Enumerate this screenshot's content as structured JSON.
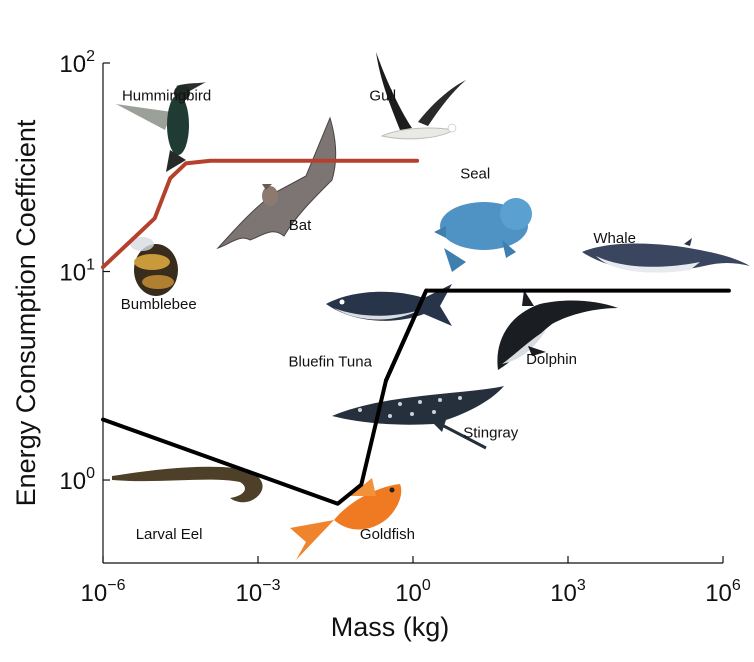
{
  "chart_data": {
    "type": "line",
    "xlabel": "Mass (kg)",
    "ylabel": "Energy Consumption Coefficient",
    "xscale": "log",
    "yscale": "log",
    "xlim": [
      1e-06,
      1000000.0
    ],
    "ylim": [
      0.4,
      100
    ],
    "grid": false,
    "x_ticks": [
      {
        "base": "10",
        "exp": "−6",
        "value": 1e-06
      },
      {
        "base": "10",
        "exp": "−3",
        "value": 0.001
      },
      {
        "base": "10",
        "exp": "0",
        "value": 1
      },
      {
        "base": "10",
        "exp": "3",
        "value": 1000
      },
      {
        "base": "10",
        "exp": "6",
        "value": 1000000
      }
    ],
    "y_ticks": [
      {
        "base": "10",
        "exp": "0",
        "value": 1
      },
      {
        "base": "10",
        "exp": "1",
        "value": 10
      },
      {
        "base": "10",
        "exp": "2",
        "value": 100
      }
    ],
    "series": [
      {
        "color": "#b5412d",
        "x": [
          1e-06,
          1e-05,
          2e-05,
          4e-05,
          0.00012,
          1.2
        ],
        "y": [
          10.5,
          18,
          28,
          33,
          34,
          34
        ]
      },
      {
        "color": "#000000",
        "x": [
          1e-06,
          0.035,
          0.1,
          0.3,
          1.8,
          1300000
        ],
        "y": [
          1.95,
          0.77,
          0.95,
          3,
          8.1,
          8.1
        ]
      },
      {
        "color": "#000000",
        "x": [
          0.3,
          1.8
        ],
        "y": [
          3,
          8.1
        ]
      }
    ],
    "annotations": [
      {
        "text": "Hummingbird",
        "icon": "hummingbird-icon",
        "x": 1.7e-05,
        "y": 66
      },
      {
        "text": "Gull",
        "icon": "gull-icon",
        "x": 0.26,
        "y": 66
      },
      {
        "text": "Bat",
        "icon": "bat-icon",
        "x": 0.0065,
        "y": 15.8
      },
      {
        "text": "Seal",
        "icon": "seal-icon",
        "x": 16,
        "y": 28
      },
      {
        "text": "Whale",
        "icon": "whale-icon",
        "x": 8000,
        "y": 13.7
      },
      {
        "text": "Bumblebee",
        "icon": "bumblebee-icon",
        "x": 1.2e-05,
        "y": 6.6
      },
      {
        "text": "Bluefin Tuna",
        "icon": "bluefin-tuna-icon",
        "x": 0.025,
        "y": 3.5
      },
      {
        "text": "Dolphin",
        "icon": "dolphin-icon",
        "x": 480,
        "y": 3.6
      },
      {
        "text": "Stingray",
        "icon": "stingray-icon",
        "x": 32,
        "y": 1.6
      },
      {
        "text": "Larval Eel",
        "icon": "larval-eel-icon",
        "x": 1.9e-05,
        "y": 0.52
      },
      {
        "text": "Goldfish",
        "icon": "goldfish-icon",
        "x": 0.32,
        "y": 0.52
      }
    ]
  }
}
